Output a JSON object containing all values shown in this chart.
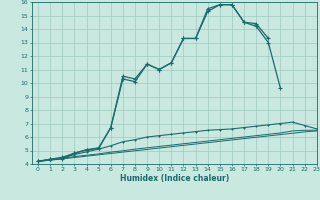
{
  "xlabel": "Humidex (Indice chaleur)",
  "background_color": "#c8e8e0",
  "grid_color": "#a0c8c0",
  "line_color": "#1a6b6b",
  "x_values": [
    0,
    1,
    2,
    3,
    4,
    5,
    6,
    7,
    8,
    9,
    10,
    11,
    12,
    13,
    14,
    15,
    16,
    17,
    18,
    19,
    20,
    21,
    22,
    23
  ],
  "series1": [
    4.2,
    4.35,
    4.4,
    4.8,
    5.05,
    5.15,
    6.7,
    10.5,
    10.3,
    11.4,
    11.0,
    11.5,
    13.3,
    13.3,
    15.5,
    15.8,
    15.8,
    14.5,
    14.4,
    13.3,
    null,
    null,
    null,
    null
  ],
  "series2": [
    4.2,
    4.35,
    4.5,
    4.8,
    5.05,
    5.2,
    6.7,
    10.3,
    10.1,
    11.4,
    11.0,
    11.5,
    13.3,
    13.3,
    15.3,
    15.8,
    15.8,
    14.5,
    14.2,
    13.0,
    9.6,
    null,
    null,
    null
  ],
  "series3": [
    4.2,
    4.3,
    4.45,
    4.7,
    4.9,
    5.1,
    5.35,
    5.65,
    5.8,
    6.0,
    6.1,
    6.2,
    6.3,
    6.4,
    6.5,
    6.55,
    6.6,
    6.7,
    6.8,
    6.9,
    7.0,
    7.1,
    6.85,
    6.6
  ],
  "series4": [
    4.2,
    4.3,
    4.42,
    4.55,
    4.65,
    4.75,
    4.88,
    4.98,
    5.1,
    5.2,
    5.3,
    5.4,
    5.5,
    5.6,
    5.7,
    5.8,
    5.9,
    6.0,
    6.1,
    6.2,
    6.3,
    6.45,
    6.5,
    6.5
  ],
  "series5": [
    4.2,
    4.28,
    4.38,
    4.48,
    4.58,
    4.68,
    4.78,
    4.88,
    4.98,
    5.08,
    5.18,
    5.28,
    5.38,
    5.48,
    5.58,
    5.68,
    5.78,
    5.88,
    5.98,
    6.08,
    6.18,
    6.28,
    6.38,
    6.45
  ],
  "ylim": [
    4,
    16
  ],
  "xlim": [
    -0.5,
    23
  ],
  "yticks": [
    4,
    5,
    6,
    7,
    8,
    9,
    10,
    11,
    12,
    13,
    14,
    15,
    16
  ],
  "xticks": [
    0,
    1,
    2,
    3,
    4,
    5,
    6,
    7,
    8,
    9,
    10,
    11,
    12,
    13,
    14,
    15,
    16,
    17,
    18,
    19,
    20,
    21,
    22,
    23
  ]
}
